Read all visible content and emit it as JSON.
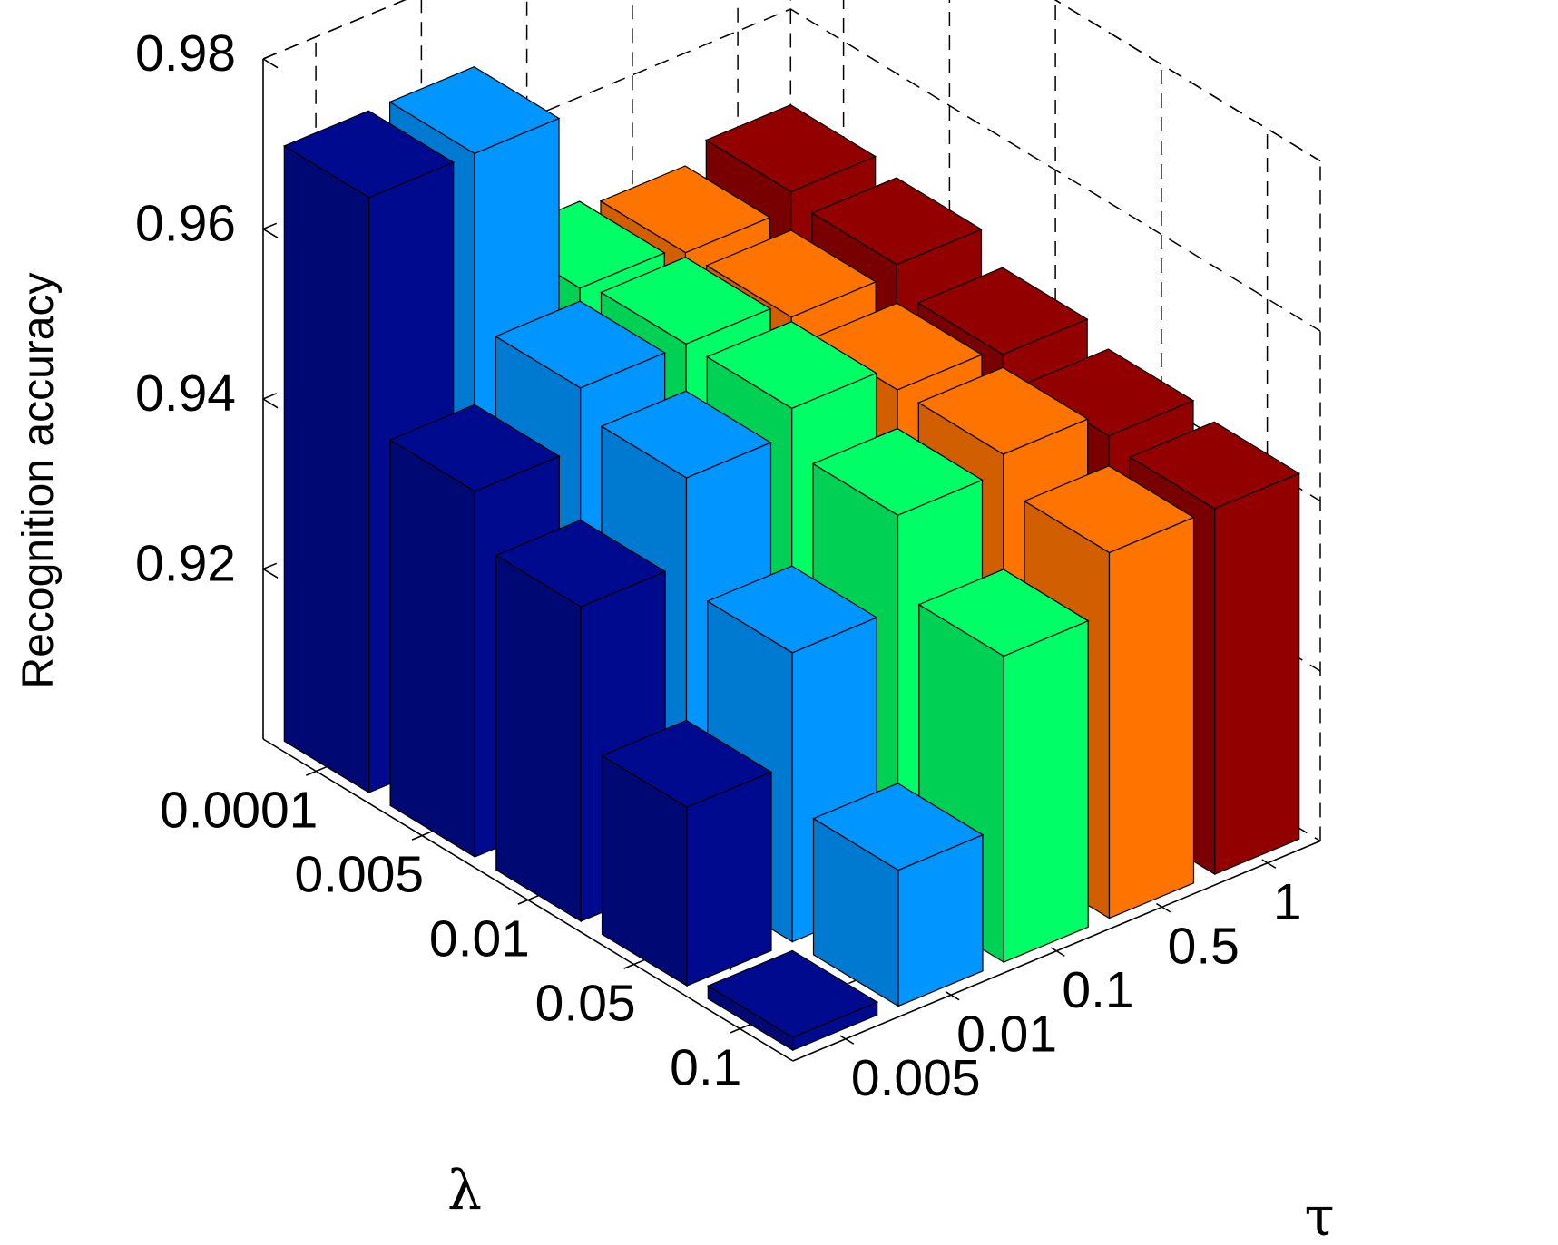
{
  "chart_data": {
    "type": "bar3d",
    "title": "",
    "zlabel": "Recognition accuracy",
    "xlabel": "λ",
    "ylabel": "τ",
    "x_categories": [
      "0.0001",
      "0.005",
      "0.01",
      "0.05",
      "0.1"
    ],
    "y_categories": [
      "0.005",
      "0.01",
      "0.1",
      "0.5",
      "1"
    ],
    "z_ticks": [
      "0.92",
      "0.94",
      "0.96",
      "0.98"
    ],
    "zlim": [
      0.9,
      0.98
    ],
    "grid": true,
    "colors": [
      "#000a8e",
      "#0095ff",
      "#00ff66",
      "#ff7300",
      "#920000"
    ],
    "values": [
      [
        0.97,
        0.97,
        0.949,
        0.948,
        0.95
      ],
      [
        0.943,
        0.95,
        0.95,
        0.948,
        0.949
      ],
      [
        0.937,
        0.947,
        0.95,
        0.947,
        0.946
      ],
      [
        0.921,
        0.934,
        0.945,
        0.947,
        0.944
      ],
      [
        0.9015,
        0.916,
        0.936,
        0.943,
        0.943
      ]
    ]
  }
}
